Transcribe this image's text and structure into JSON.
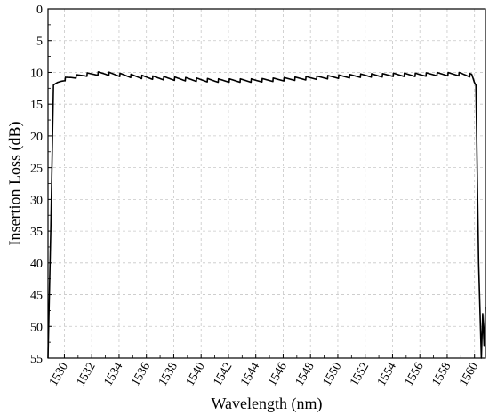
{
  "chart_data": {
    "type": "line",
    "xlabel": "Wavelength (nm)",
    "ylabel": "Insertion Loss (dB)",
    "xlim": [
      1528.8,
      1560.8
    ],
    "ylim": [
      55,
      0
    ],
    "y_axis_inverted": true,
    "grid": true,
    "legend": "none",
    "xticks": [
      1530,
      1532,
      1534,
      1536,
      1538,
      1540,
      1542,
      1544,
      1546,
      1548,
      1550,
      1552,
      1554,
      1556,
      1558,
      1560
    ],
    "yticks": [
      0,
      5,
      10,
      15,
      20,
      25,
      30,
      35,
      40,
      45,
      50,
      55
    ],
    "series": [
      {
        "color": "#000000",
        "x": [
          1528.8,
          1529.0,
          1529.2,
          1529.5,
          1529.8,
          1530.0,
          1530.5,
          1531.0,
          1531.5,
          1532.0,
          1532.5,
          1533.0,
          1533.5,
          1534.0,
          1534.5,
          1535.0,
          1536.0,
          1537.0,
          1538.0,
          1539.0,
          1540.0,
          1541.0,
          1542.0,
          1543.0,
          1544.0,
          1545.0,
          1546.0,
          1547.0,
          1548.0,
          1549.0,
          1550.0,
          1551.0,
          1552.0,
          1553.0,
          1554.0,
          1555.0,
          1556.0,
          1557.0,
          1558.0,
          1559.0,
          1559.8,
          1560.1,
          1560.3,
          1560.5,
          1560.6,
          1560.7,
          1560.8
        ],
        "y": [
          55,
          35,
          12,
          11.4,
          11.0,
          10.8,
          10.5,
          10.3,
          10.1,
          10.0,
          9.9,
          9.9,
          10.0,
          10.1,
          10.2,
          10.3,
          10.5,
          10.6,
          10.7,
          10.8,
          10.9,
          11.0,
          11.0,
          11.0,
          11.0,
          10.9,
          10.8,
          10.7,
          10.6,
          10.5,
          10.4,
          10.3,
          10.2,
          10.2,
          10.1,
          10.1,
          10.1,
          10.0,
          10.0,
          10.0,
          10.2,
          12,
          40,
          55,
          48,
          53,
          47
        ]
      }
    ]
  }
}
